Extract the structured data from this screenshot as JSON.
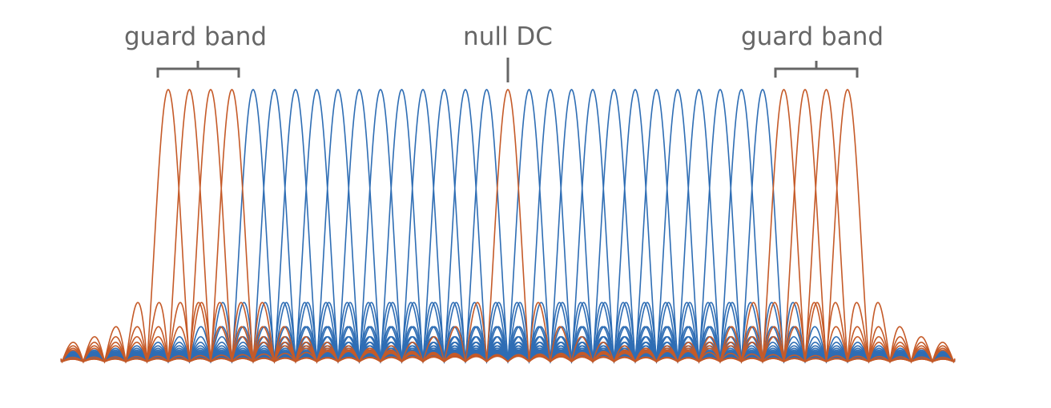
{
  "labels": {
    "left_guard": "guard band",
    "null_dc": "null DC",
    "right_guard": "guard band"
  },
  "chart_data": {
    "type": "line",
    "description": "",
    "subcarriers": {
      "guard_left": 4,
      "data_left": 12,
      "null_dc": 1,
      "data_right": 12,
      "guard_right": 4
    },
    "guard_band_count_each_side": 4,
    "null_dc_count": 1,
    "data_subcarrier_count": 24
  },
  "colors": {
    "guard": "#C55A28",
    "null_dc": "#C55A28",
    "data": "#2E6DB4",
    "annotation": "#666666"
  }
}
